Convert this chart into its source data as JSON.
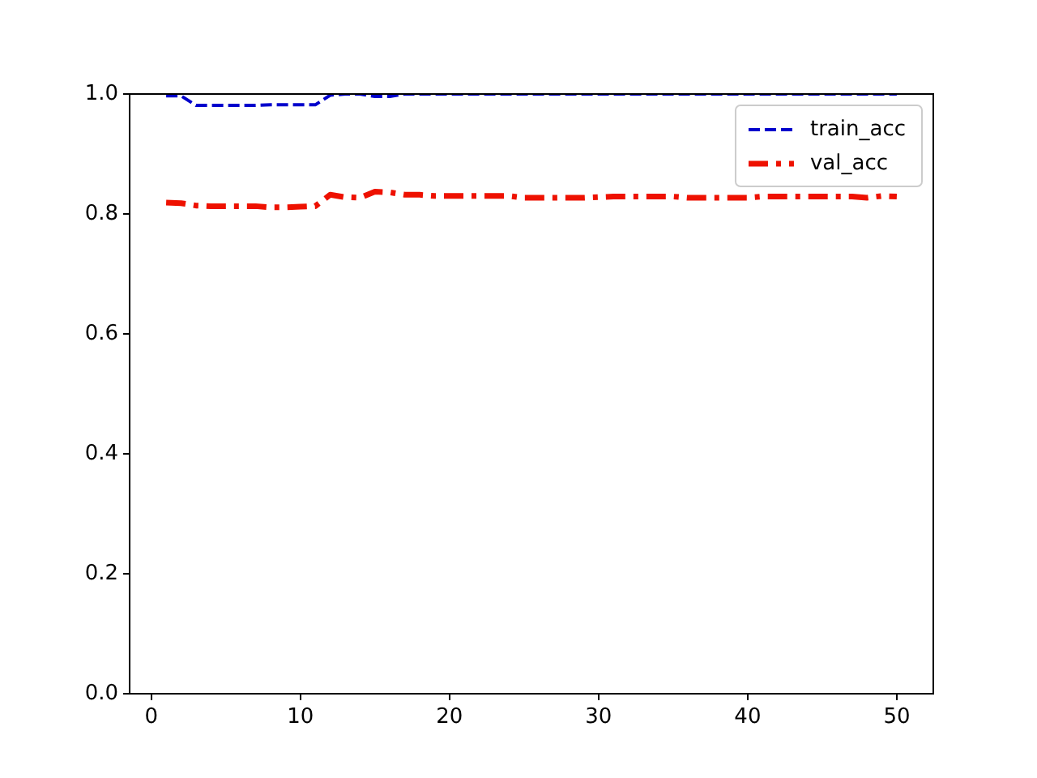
{
  "chart_data": {
    "type": "line",
    "x": [
      1,
      2,
      3,
      4,
      5,
      6,
      7,
      8,
      9,
      10,
      11,
      12,
      13,
      14,
      15,
      16,
      17,
      18,
      19,
      20,
      21,
      22,
      23,
      24,
      25,
      26,
      27,
      28,
      29,
      30,
      31,
      32,
      33,
      34,
      35,
      36,
      37,
      38,
      39,
      40,
      41,
      42,
      43,
      44,
      45,
      46,
      47,
      48,
      49,
      50
    ],
    "series": [
      {
        "name": "train_acc",
        "color": "#0000cc",
        "line_style": "dashed",
        "values": [
          0.997,
          0.997,
          0.981,
          0.981,
          0.981,
          0.981,
          0.981,
          0.982,
          0.982,
          0.982,
          0.982,
          0.998,
          1.0,
          1.0,
          0.996,
          0.996,
          1.0,
          1.0,
          1.0,
          1.0,
          1.0,
          1.0,
          1.0,
          1.0,
          1.0,
          1.0,
          1.0,
          1.0,
          1.0,
          1.0,
          1.0,
          1.0,
          1.0,
          1.0,
          1.0,
          1.0,
          1.0,
          1.0,
          1.0,
          1.0,
          1.0,
          1.0,
          1.0,
          1.0,
          1.0,
          1.0,
          1.0,
          1.0,
          1.0,
          1.0
        ]
      },
      {
        "name": "val_acc",
        "color": "#ee1100",
        "line_style": "dashdot",
        "values": [
          0.819,
          0.818,
          0.814,
          0.813,
          0.813,
          0.813,
          0.813,
          0.811,
          0.811,
          0.812,
          0.813,
          0.832,
          0.828,
          0.827,
          0.837,
          0.836,
          0.832,
          0.832,
          0.83,
          0.83,
          0.83,
          0.83,
          0.83,
          0.83,
          0.827,
          0.827,
          0.827,
          0.827,
          0.827,
          0.828,
          0.829,
          0.829,
          0.829,
          0.829,
          0.829,
          0.827,
          0.827,
          0.827,
          0.827,
          0.827,
          0.829,
          0.829,
          0.829,
          0.829,
          0.829,
          0.829,
          0.829,
          0.827,
          0.83,
          0.829
        ]
      }
    ],
    "xlim": [
      -1.45,
      52.45
    ],
    "xticks": [
      0,
      10,
      20,
      30,
      40,
      50
    ],
    "ylim": [
      0,
      1
    ],
    "yticks": [
      {
        "value": 0,
        "label": "0.0"
      },
      {
        "value": 0.2,
        "label": "0.2"
      },
      {
        "value": 0.4,
        "label": "0.4"
      },
      {
        "value": 0.6,
        "label": "0.6"
      },
      {
        "value": 0.8,
        "label": "0.8"
      },
      {
        "value": 1,
        "label": "1.0"
      }
    ],
    "legend": "top right",
    "grid": false
  }
}
